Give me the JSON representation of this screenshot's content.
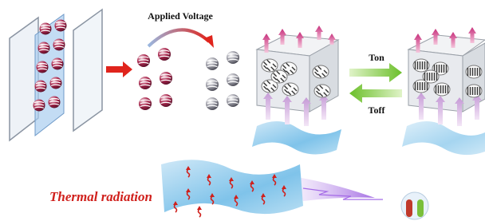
{
  "labels": {
    "applied_voltage": "Applied Voltage",
    "ton": "Ton",
    "toff": "Toff",
    "thermal_radiation": "Thermal radiation"
  }
}
